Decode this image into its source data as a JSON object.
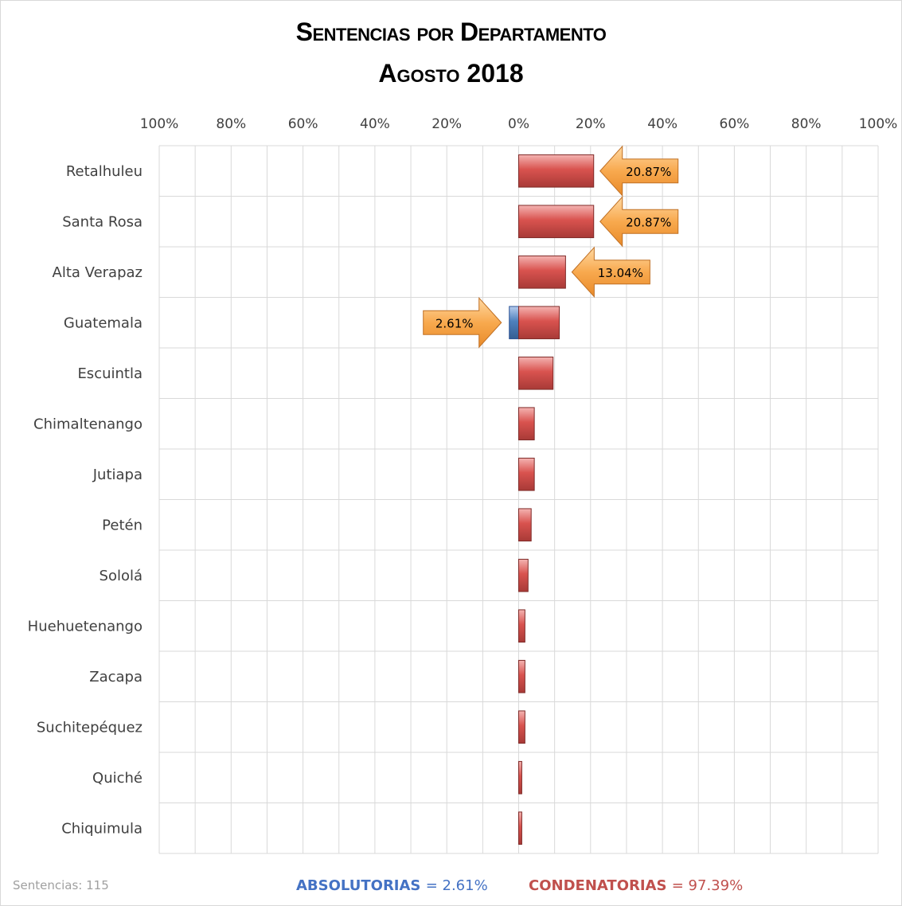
{
  "chart_data": {
    "type": "bar",
    "orientation": "horizontal",
    "layout": "diverging",
    "title": "Sentencias por Departamento",
    "subtitle": "Agosto 2018",
    "x_tick_labels": [
      "100%",
      "80%",
      "60%",
      "40%",
      "20%",
      "0%",
      "20%",
      "40%",
      "60%",
      "80%",
      "100%"
    ],
    "xlim": [
      -100,
      100
    ],
    "grid": true,
    "categories": [
      "Retalhuleu",
      "Santa Rosa",
      "Alta Verapaz",
      "Guatemala",
      "Escuintla",
      "Chimaltenango",
      "Jutiapa",
      "Petén",
      "Sololá",
      "Huehuetenango",
      "Zacapa",
      "Suchitepéquez",
      "Quiché",
      "Chiquimula"
    ],
    "series": [
      {
        "name": "ABSOLUTORIAS",
        "color": "#4f81bd",
        "side": "left",
        "values": [
          0,
          0,
          0,
          2.61,
          0,
          0,
          0,
          0,
          0,
          0,
          0,
          0,
          0,
          0
        ]
      },
      {
        "name": "CONDENATORIAS",
        "color": "#c0504d",
        "side": "right",
        "values": [
          20.87,
          20.87,
          13.04,
          11.3,
          9.57,
          4.35,
          4.35,
          3.48,
          2.61,
          1.74,
          1.74,
          1.74,
          0.87,
          0.87
        ]
      }
    ],
    "annotations": [
      {
        "category": "Retalhuleu",
        "series": "CONDENATORIAS",
        "label": "20.87%"
      },
      {
        "category": "Santa Rosa",
        "series": "CONDENATORIAS",
        "label": "20.87%"
      },
      {
        "category": "Alta Verapaz",
        "series": "CONDENATORIAS",
        "label": "13.04%"
      },
      {
        "category": "Guatemala",
        "series": "ABSOLUTORIAS",
        "label": "2.61%"
      }
    ]
  },
  "footer": {
    "total": "Sentencias: 115",
    "absolutorias_label": "ABSOLUTORIAS",
    "absolutorias_value": "= 2.61%",
    "condenatorias_label": "CONDENATORIAS",
    "condenatorias_value": "= 97.39%"
  },
  "colors": {
    "absolutorias": "#4472c4",
    "condenatorias": "#c0504d",
    "callout": "#f79646",
    "grid": "#d9d9d9"
  }
}
